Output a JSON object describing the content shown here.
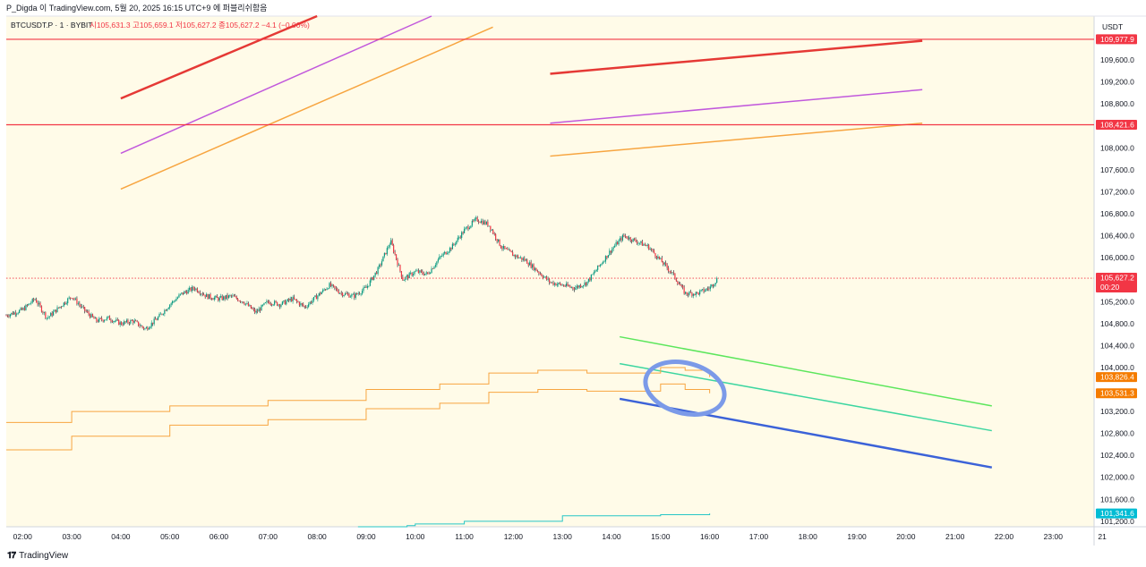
{
  "header": {
    "publisher": "P_Digda 이 TradingView.com, 5월 20, 2025 16:15 UTC+9 에 퍼블리쉬함음",
    "symbol": "BTCUSDT.P · 1 · BYBIT",
    "ohlc": "시105,631.3  고105,659.1  저105,627.2  종105,627.2  −4.1 (−0.00%)"
  },
  "footer": {
    "brand": "TradingView"
  },
  "price_axis": {
    "currency": "USDT",
    "ticks": [
      "109,600.0",
      "109,200.0",
      "108,800.0",
      "108,000.0",
      "107,600.0",
      "107,200.0",
      "106,800.0",
      "106,400.0",
      "106,000.0",
      "105,200.0",
      "104,800.0",
      "104,400.0",
      "104,000.0",
      "103,200.0",
      "102,800.0",
      "102,400.0",
      "102,000.0",
      "101,600.0",
      "101,200.0"
    ],
    "labels": [
      {
        "text": "109,977.9",
        "price": 109977.9,
        "color": "#f23645"
      },
      {
        "text": "108,421.6",
        "price": 108421.6,
        "color": "#f23645"
      },
      {
        "text": "105,627.2",
        "price": 105627.2,
        "color": "#f23645",
        "sub": "00:20"
      },
      {
        "text": "103,826.4",
        "price": 103826.4,
        "color": "#f57c00"
      },
      {
        "text": "103,531.3",
        "price": 103531.3,
        "color": "#f57c00"
      },
      {
        "text": "101,341.6",
        "price": 101341.6,
        "color": "#00bcd4"
      }
    ]
  },
  "time_axis": {
    "ticks": [
      "02:00",
      "03:00",
      "04:00",
      "05:00",
      "06:00",
      "07:00",
      "08:00",
      "09:00",
      "10:00",
      "11:00",
      "12:00",
      "13:00",
      "14:00",
      "15:00",
      "16:00",
      "17:00",
      "18:00",
      "19:00",
      "20:00",
      "21:00",
      "22:00",
      "23:00",
      "21"
    ]
  },
  "chart_data": {
    "type": "candlestick",
    "symbol": "BTCUSDT.P",
    "interval": "1",
    "exchange": "BYBIT",
    "currency": "USDT",
    "x_range": [
      "01:40",
      "23:50"
    ],
    "ylim": [
      101100,
      110400
    ],
    "last_price": 105627.2,
    "price_path": [
      [
        "01:40",
        104950
      ],
      [
        "02:00",
        105050
      ],
      [
        "02:15",
        105250
      ],
      [
        "02:30",
        104900
      ],
      [
        "02:45",
        105100
      ],
      [
        "03:00",
        105300
      ],
      [
        "03:15",
        105050
      ],
      [
        "03:30",
        104850
      ],
      [
        "03:45",
        104900
      ],
      [
        "04:00",
        104800
      ],
      [
        "04:15",
        104850
      ],
      [
        "04:30",
        104700
      ],
      [
        "04:45",
        104900
      ],
      [
        "05:00",
        105150
      ],
      [
        "05:15",
        105350
      ],
      [
        "05:30",
        105450
      ],
      [
        "05:45",
        105300
      ],
      [
        "06:00",
        105250
      ],
      [
        "06:15",
        105300
      ],
      [
        "06:30",
        105200
      ],
      [
        "06:45",
        105000
      ],
      [
        "07:00",
        105200
      ],
      [
        "07:15",
        105150
      ],
      [
        "07:30",
        105250
      ],
      [
        "07:45",
        105100
      ],
      [
        "08:00",
        105300
      ],
      [
        "08:15",
        105500
      ],
      [
        "08:30",
        105350
      ],
      [
        "08:45",
        105300
      ],
      [
        "09:00",
        105450
      ],
      [
        "09:15",
        105800
      ],
      [
        "09:30",
        106300
      ],
      [
        "09:45",
        105600
      ],
      [
        "10:00",
        105750
      ],
      [
        "10:15",
        105700
      ],
      [
        "10:30",
        106000
      ],
      [
        "10:45",
        106200
      ],
      [
        "11:00",
        106500
      ],
      [
        "11:15",
        106700
      ],
      [
        "11:30",
        106600
      ],
      [
        "11:45",
        106200
      ],
      [
        "12:00",
        106050
      ],
      [
        "12:15",
        105950
      ],
      [
        "12:30",
        105750
      ],
      [
        "12:45",
        105550
      ],
      [
        "13:00",
        105500
      ],
      [
        "13:15",
        105450
      ],
      [
        "13:30",
        105550
      ],
      [
        "13:45",
        105850
      ],
      [
        "14:00",
        106150
      ],
      [
        "14:15",
        106400
      ],
      [
        "14:30",
        106300
      ],
      [
        "14:45",
        106200
      ],
      [
        "15:00",
        105950
      ],
      [
        "15:15",
        105700
      ],
      [
        "15:30",
        105350
      ],
      [
        "15:45",
        105350
      ],
      [
        "16:00",
        105450
      ],
      [
        "16:10",
        105627.2
      ]
    ],
    "horizontal_lines": [
      {
        "price": 109977.9,
        "color": "#f23645"
      },
      {
        "price": 108421.6,
        "color": "#f23645"
      },
      {
        "price": 105627.2,
        "color": "#f23645",
        "style": "dotted"
      }
    ],
    "trend_lines": [
      {
        "color": "#e53935",
        "from": [
          "04:00",
          108900
        ],
        "to": [
          "08:00",
          110400
        ]
      },
      {
        "color": "#c158dc",
        "from": [
          "04:00",
          107900
        ],
        "to": [
          "10:20",
          110400
        ]
      },
      {
        "color": "#f7a540",
        "from": [
          "04:00",
          107250
        ],
        "to": [
          "11:35",
          110200
        ]
      },
      {
        "color": "#e53935",
        "from": [
          "12:45",
          109350
        ],
        "to": [
          "20:20",
          109950
        ]
      },
      {
        "color": "#c158dc",
        "from": [
          "12:45",
          108450
        ],
        "to": [
          "20:20",
          109060
        ]
      },
      {
        "color": "#f7a540",
        "from": [
          "12:45",
          107850
        ],
        "to": [
          "20:20",
          108450
        ]
      },
      {
        "color": "#5ce65c",
        "from": [
          "14:10",
          104560
        ],
        "to": [
          "21:45",
          103300
        ]
      },
      {
        "color": "#3dd6a0",
        "from": [
          "14:10",
          104070
        ],
        "to": [
          "21:45",
          102850
        ]
      },
      {
        "color": "#3b62d8",
        "from": [
          "14:10",
          103430
        ],
        "to": [
          "21:45",
          102180
        ]
      }
    ],
    "step_lines": [
      {
        "name": "upper",
        "color": "#f7a540",
        "points": [
          [
            "01:40",
            103000
          ],
          [
            "03:00",
            103200
          ],
          [
            "05:00",
            103300
          ],
          [
            "07:00",
            103400
          ],
          [
            "09:00",
            103600
          ],
          [
            "10:30",
            103700
          ],
          [
            "11:30",
            103900
          ],
          [
            "12:30",
            103950
          ],
          [
            "13:30",
            103900
          ],
          [
            "14:30",
            103900
          ],
          [
            "15:00",
            104000
          ],
          [
            "15:30",
            103950
          ],
          [
            "16:00",
            103826.4
          ]
        ]
      },
      {
        "name": "lower",
        "color": "#f7a540",
        "points": [
          [
            "01:40",
            102500
          ],
          [
            "03:00",
            102750
          ],
          [
            "05:00",
            102950
          ],
          [
            "07:00",
            103050
          ],
          [
            "09:00",
            103250
          ],
          [
            "10:30",
            103350
          ],
          [
            "11:30",
            103550
          ],
          [
            "12:30",
            103600
          ],
          [
            "13:30",
            103570
          ],
          [
            "14:30",
            103570
          ],
          [
            "15:00",
            103700
          ],
          [
            "15:30",
            103600
          ],
          [
            "16:00",
            103531.3
          ]
        ]
      },
      {
        "name": "base",
        "color": "#26c6c6",
        "points": [
          [
            "08:50",
            101100
          ],
          [
            "09:50",
            101120
          ],
          [
            "10:00",
            101150
          ],
          [
            "11:00",
            101200
          ],
          [
            "13:00",
            101300
          ],
          [
            "15:00",
            101320
          ],
          [
            "16:00",
            101341.6
          ]
        ]
      }
    ],
    "annotations": [
      {
        "type": "ellipse",
        "color": "#7b9ae8",
        "time": "15:45",
        "price": 103650
      }
    ]
  }
}
